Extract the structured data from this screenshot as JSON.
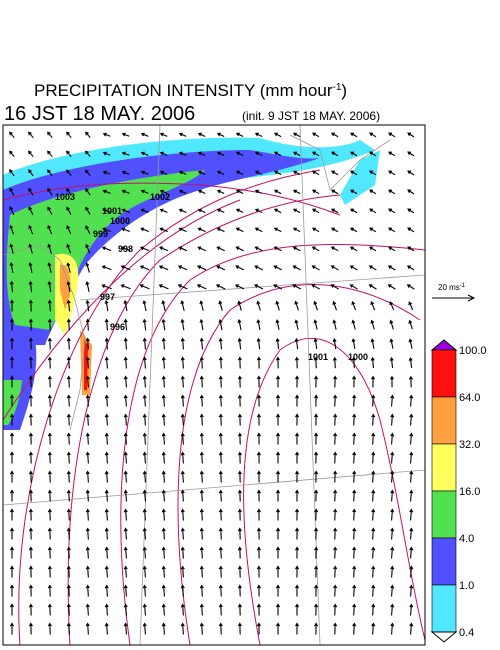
{
  "header": {
    "title": "PRECIPITATION INTENSITY (mm hour",
    "title_exp": "-1",
    "title_close": ")",
    "valid_time": "16 JST 18 MAY. 2006",
    "init_time": "(init. 9 JST 18 MAY. 2006)"
  },
  "vector_scale": {
    "label": "20 ms",
    "exp": "-1"
  },
  "contours": {
    "labels": [
      "1003",
      "1001",
      "1000",
      "1002",
      "999",
      "998",
      "997",
      "996",
      "1001",
      "1000"
    ]
  },
  "legend": {
    "labels": [
      "100.0",
      "64.0",
      "32.0",
      "16.0",
      "4.0",
      "1.0",
      "0.4"
    ],
    "colors": [
      "#ff1010",
      "#ffa040",
      "#ffff60",
      "#50e050",
      "#5050ff",
      "#50e8ff"
    ],
    "top_color": "#a000e0",
    "bottom_color": "#ffffff"
  }
}
